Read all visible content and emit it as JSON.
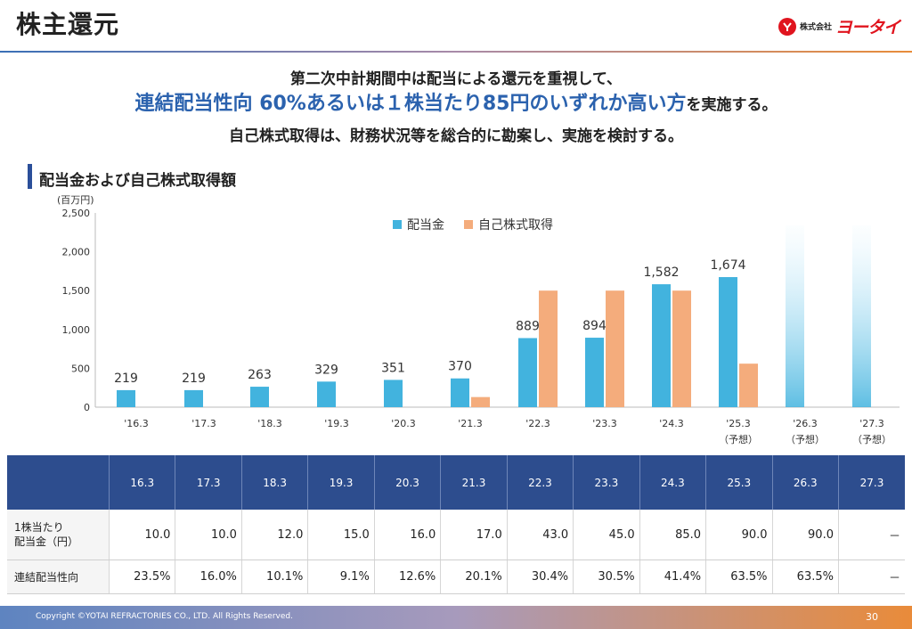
{
  "page": {
    "title": "株主還元",
    "logo_prefix": "株式会社",
    "logo_name": "ヨータイ",
    "msg_line1": "第二次中計期間中は配当による還元を重視して、",
    "msg_line2_highlight": "連結配当性向 60%あるいは１株当たり85円のいずれか高い方",
    "msg_line2_tail": "を実施する。",
    "msg_line3": "自己株式取得は、財務状況等を総合的に勘案し、実施を検討する。",
    "section_title": "配当金および自己株式取得額",
    "unit": "(百万円)",
    "copyright": "Copyright ©YOTAI REFRACTORIES CO., LTD. All Rights Reserved.",
    "page_number": "30"
  },
  "colors": {
    "dividend": "#42b3de",
    "buyback": "#f4ac7c",
    "forecast_fade": "#bfe8fa",
    "table_header": "#2d4d8e"
  },
  "chart_data": {
    "type": "bar",
    "categories": [
      "'16.3",
      "'17.3",
      "'18.3",
      "'19.3",
      "'20.3",
      "'21.3",
      "'22.3",
      "'23.3",
      "'24.3",
      "'25.3",
      "'26.3",
      "'27.3"
    ],
    "category_notes": [
      "",
      "",
      "",
      "",
      "",
      "",
      "",
      "",
      "",
      "（予想）",
      "（予想）",
      "（予想）"
    ],
    "series": [
      {
        "name": "配当金",
        "values": [
          219,
          219,
          263,
          329,
          351,
          370,
          889,
          894,
          1582,
          1674,
          null,
          null
        ],
        "labels": [
          "219",
          "219",
          "263",
          "329",
          "351",
          "370",
          "889",
          "894",
          "1,582",
          "1,674",
          "",
          ""
        ]
      },
      {
        "name": "自己株式取得",
        "values": [
          null,
          null,
          null,
          null,
          null,
          130,
          1500,
          1500,
          1500,
          560,
          null,
          null
        ]
      }
    ],
    "forecast_placeholders": [
      "'26.3",
      "'27.3"
    ],
    "ylim": [
      0,
      2500
    ],
    "yticks": [
      0,
      500,
      1000,
      1500,
      2000,
      2500
    ],
    "ytick_labels": [
      "0",
      "500",
      "1,000",
      "1,500",
      "2,000",
      "2,500"
    ],
    "ylabel": "(百万円)",
    "legend_position": "top-center",
    "grid": false
  },
  "table": {
    "headers": [
      "",
      "16.3",
      "17.3",
      "18.3",
      "19.3",
      "20.3",
      "21.3",
      "22.3",
      "23.3",
      "24.3",
      "25.3",
      "26.3",
      "27.3"
    ],
    "rows": [
      {
        "label_line1": "1株当たり",
        "label_line2": "配当金（円）",
        "cells": [
          "10.0",
          "10.0",
          "12.0",
          "15.0",
          "16.0",
          "17.0",
          "43.0",
          "45.0",
          "85.0",
          "90.0",
          "90.0",
          "－"
        ]
      },
      {
        "label_line1": "連結配当性向",
        "label_line2": "",
        "cells": [
          "23.5%",
          "16.0%",
          "10.1%",
          "9.1%",
          "12.6%",
          "20.1%",
          "30.4%",
          "30.5%",
          "41.4%",
          "63.5%",
          "63.5%",
          "－"
        ]
      }
    ]
  }
}
